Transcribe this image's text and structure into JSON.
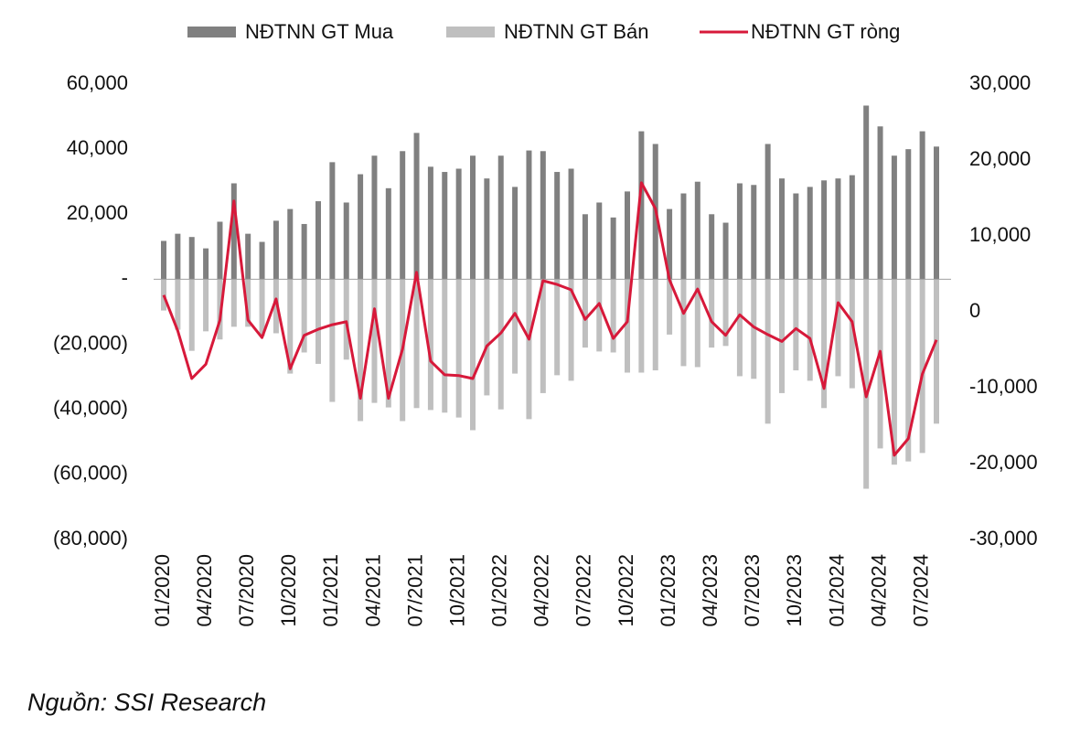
{
  "chart_data": {
    "type": "bar-line",
    "source": "Nguồn: SSI Research",
    "categories": [
      "01/2020",
      null,
      null,
      "04/2020",
      null,
      null,
      "07/2020",
      null,
      null,
      "10/2020",
      null,
      null,
      "01/2021",
      null,
      null,
      "04/2021",
      null,
      null,
      "07/2021",
      null,
      null,
      "10/2021",
      null,
      null,
      "01/2022",
      null,
      null,
      "04/2022",
      null,
      null,
      "07/2022",
      null,
      null,
      "10/2022",
      null,
      null,
      "01/2023",
      null,
      null,
      "04/2023",
      null,
      null,
      "07/2023",
      null,
      null,
      "10/2023",
      null,
      null,
      "01/2024",
      null,
      null,
      "04/2024",
      null,
      null,
      "07/2024",
      null
    ],
    "series": [
      {
        "name": "NĐTNN GT Mua",
        "color": "#808080",
        "values": [
          11800,
          14000,
          13000,
          9500,
          17700,
          29500,
          14000,
          11500,
          18000,
          21600,
          17000,
          24000,
          36000,
          23600,
          32300,
          38000,
          28000,
          39400,
          45000,
          34600,
          33000,
          34000,
          38000,
          31000,
          38000,
          28400,
          39600,
          39400,
          33000,
          34000,
          20000,
          23600,
          19000,
          27000,
          45500,
          41600,
          21600,
          26400,
          30000,
          20000,
          17400,
          29500,
          29000,
          41600,
          31000,
          26400,
          28400,
          30400,
          31000,
          32000,
          53400,
          47000,
          38000,
          40000,
          45500,
          40800
        ]
      },
      {
        "name": "NĐTNN GT Bán",
        "color": "#bfbfbf",
        "values": [
          -9600,
          -15500,
          -22000,
          -16000,
          -18500,
          -14600,
          -14600,
          -17400,
          -16600,
          -29000,
          -22500,
          -26000,
          -37700,
          -24700,
          -43600,
          -38000,
          -39400,
          -43600,
          -39600,
          -40200,
          -41000,
          -42500,
          -46400,
          -35700,
          -40000,
          -29000,
          -43000,
          -35000,
          -29500,
          -31200,
          -21000,
          -22200,
          -22500,
          -28700,
          -28700,
          -28000,
          -17000,
          -26700,
          -27000,
          -21000,
          -20500,
          -29800,
          -30600,
          -44400,
          -35000,
          -28000,
          -31200,
          -39600,
          -29800,
          -33500,
          -64400,
          -52000,
          -57000,
          -56000,
          -53400,
          -44400
        ]
      },
      {
        "name": "NĐTNN GT ròng",
        "color": "#d7193a",
        "axis": "y2",
        "values": [
          2200,
          -2500,
          -8800,
          -6900,
          -1100,
          14600,
          -1100,
          -3400,
          1700,
          -7500,
          -3100,
          -2300,
          -1700,
          -1300,
          -11400,
          400,
          -11400,
          -4900,
          5200,
          -6500,
          -8300,
          -8400,
          -8800,
          -4500,
          -2800,
          -200,
          -3600,
          4100,
          3600,
          2900,
          -1000,
          1100,
          -3500,
          -1300,
          17000,
          13600,
          4200,
          -200,
          3000,
          -1300,
          -3100,
          -400,
          -2000,
          -3000,
          -3900,
          -2200,
          -3500,
          -10100,
          1200,
          -1300,
          -11200,
          -5200,
          -18900,
          -16700,
          -8200,
          -3700
        ]
      }
    ],
    "ylim": [
      -80000,
      60000
    ],
    "yticks": [
      {
        "value": 60000,
        "label": "60,000"
      },
      {
        "value": 40000,
        "label": "40,000"
      },
      {
        "value": 20000,
        "label": "20,000"
      },
      {
        "value": 0,
        "label": "-"
      },
      {
        "value": -20000,
        "label": "(20,000)"
      },
      {
        "value": -40000,
        "label": "(40,000)"
      },
      {
        "value": -60000,
        "label": "(60,000)"
      },
      {
        "value": -80000,
        "label": "(80,000)"
      }
    ],
    "y2lim": [
      -30000,
      30000
    ],
    "y2ticks": [
      {
        "value": 30000,
        "label": "30,000"
      },
      {
        "value": 20000,
        "label": "20,000"
      },
      {
        "value": 10000,
        "label": "10,000"
      },
      0,
      {
        "value": -10000,
        "label": "-10,000"
      },
      {
        "value": -20000,
        "label": "-20,000"
      },
      {
        "value": -30000,
        "label": "-30,000"
      }
    ]
  }
}
